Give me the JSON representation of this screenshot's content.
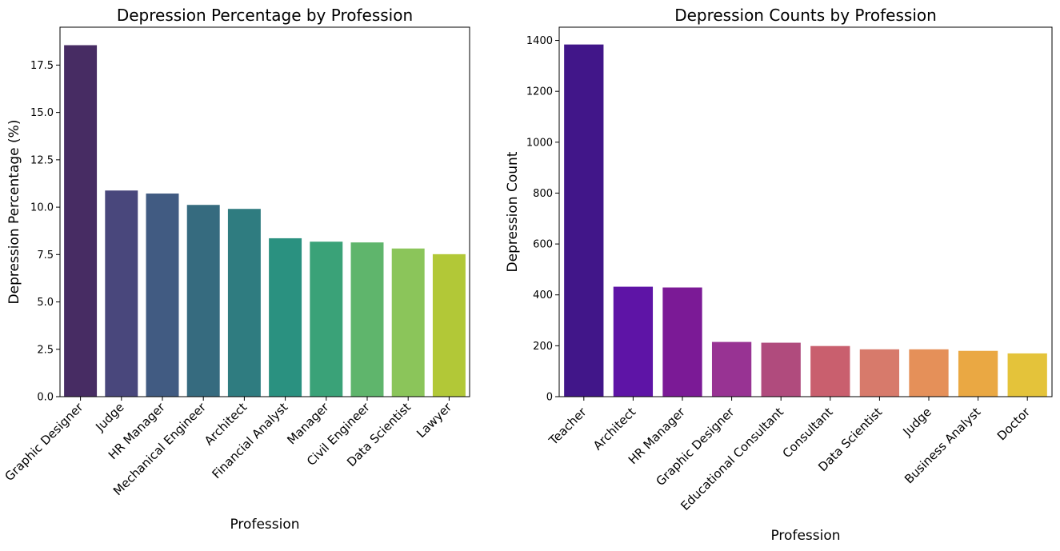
{
  "chart_data": [
    {
      "type": "bar",
      "title": "Depression Percentage by Profession",
      "xlabel": "Profession",
      "ylabel": "Depression Percentage (%)",
      "categories": [
        "Graphic Designer",
        "Judge",
        "HR Manager",
        "Mechanical Engineer",
        "Architect",
        "Financial Analyst",
        "Manager",
        "Civil Engineer",
        "Data Scientist",
        "Lawyer"
      ],
      "values": [
        18.55,
        10.88,
        10.72,
        10.12,
        9.91,
        8.36,
        8.18,
        8.14,
        7.82,
        7.52
      ],
      "ylim": [
        0,
        19.5
      ],
      "yticks": [
        0.0,
        2.5,
        5.0,
        7.5,
        10.0,
        12.5,
        15.0,
        17.5
      ],
      "ytick_labels": [
        "0.0",
        "2.5",
        "5.0",
        "7.5",
        "10.0",
        "12.5",
        "15.0",
        "17.5"
      ],
      "grid": false,
      "palette": "viridis",
      "colors": [
        "#472c63",
        "#49477c",
        "#415b82",
        "#366b7f",
        "#2f7c80",
        "#2a9180",
        "#3aa278",
        "#5fb56c",
        "#8bc55a",
        "#b2c837"
      ]
    },
    {
      "type": "bar",
      "title": "Depression Counts by Profession",
      "xlabel": "Profession",
      "ylabel": "Depression Count",
      "categories": [
        "Teacher",
        "Architect",
        "HR Manager",
        "Graphic Designer",
        "Educational Consultant",
        "Consultant",
        "Data Scientist",
        "Judge",
        "Business Analyst",
        "Doctor"
      ],
      "values": [
        1384,
        432,
        429,
        215,
        212,
        199,
        186,
        186,
        180,
        170
      ],
      "ylim": [
        0,
        1452
      ],
      "yticks": [
        0,
        200,
        400,
        600,
        800,
        1000,
        1200,
        1400
      ],
      "ytick_labels": [
        "0",
        "200",
        "400",
        "600",
        "800",
        "1000",
        "1200",
        "1400"
      ],
      "grid": false,
      "palette": "plasma",
      "colors": [
        "#411689",
        "#5e14a6",
        "#7b1a96",
        "#983393",
        "#b04b7d",
        "#c95f6e",
        "#d77a6b",
        "#e59059",
        "#eaa843",
        "#e4c33a"
      ]
    }
  ]
}
